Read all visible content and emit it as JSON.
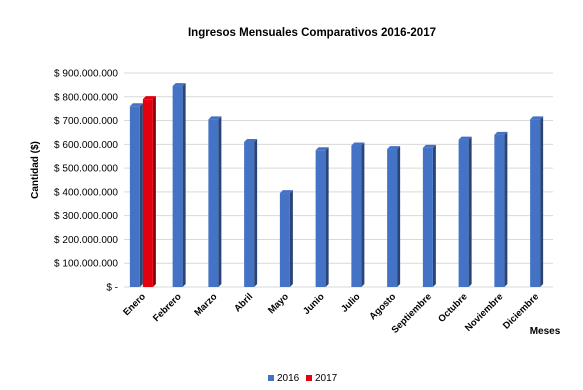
{
  "chart_data": {
    "type": "bar",
    "title": "Ingresos Mensuales Comparativos 2016-2017",
    "xlabel": "Meses",
    "ylabel": "Cantidad ($)",
    "categories": [
      "Enero",
      "Febrero",
      "Marzo",
      "Abril",
      "Mayo",
      "Junio",
      "Julio",
      "Agosto",
      "Septiembre",
      "Octubre",
      "Noviembre",
      "Diciembre"
    ],
    "series": [
      {
        "name": "2016",
        "color": "#4472C4",
        "values": [
          760000000,
          845000000,
          705000000,
          610000000,
          395000000,
          575000000,
          595000000,
          580000000,
          585000000,
          620000000,
          640000000,
          705000000
        ]
      },
      {
        "name": "2017",
        "color": "#E3000F",
        "values": [
          790000000,
          null,
          null,
          null,
          null,
          null,
          null,
          null,
          null,
          null,
          null,
          null
        ]
      }
    ],
    "ylim": [
      0,
      900000000
    ],
    "yticks": [
      0,
      100000000,
      200000000,
      300000000,
      400000000,
      500000000,
      600000000,
      700000000,
      800000000,
      900000000
    ],
    "ytick_labels": [
      "$ -",
      "$ 100.000.000",
      "$ 200.000.000",
      "$ 300.000.000",
      "$ 400.000.000",
      "$ 500.000.000",
      "$ 600.000.000",
      "$ 700.000.000",
      "$ 800.000.000",
      "$ 900.000.000"
    ],
    "grid": true,
    "legend_position": "bottom"
  }
}
